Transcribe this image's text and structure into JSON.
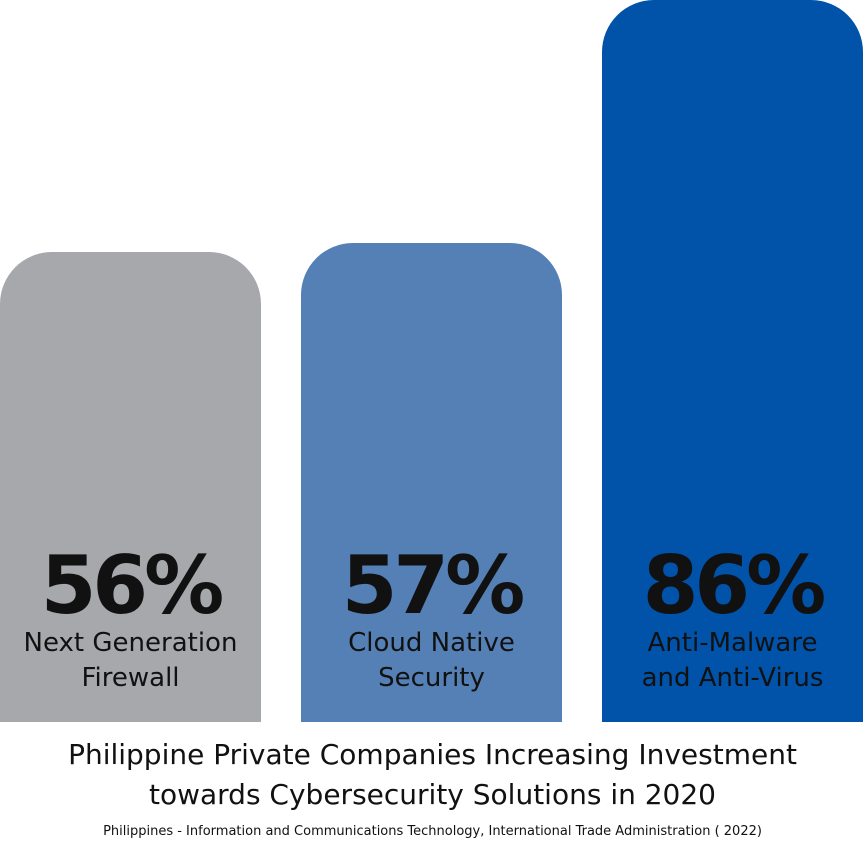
{
  "chart_data": {
    "type": "bar",
    "title": "Philippine Private Companies Increasing  Investment\ntowards Cybersecurity Solutions in 2020",
    "source": "Philippines - Information and Communications Technology, International Trade Administration ( 2022)",
    "xlabel": "",
    "ylabel": "",
    "grid": false,
    "ylim": [
      0,
      100
    ],
    "categories": [
      "Next Generation\nFirewall",
      "Cloud Native\nSecurity",
      "Anti-Malware\nand Anti-Virus"
    ],
    "value_labels": [
      "56%",
      "57%",
      "86%"
    ],
    "values": [
      56,
      57,
      86
    ],
    "colors": [
      "#a7a8ac",
      "#5580b6",
      "#0152a9"
    ]
  }
}
